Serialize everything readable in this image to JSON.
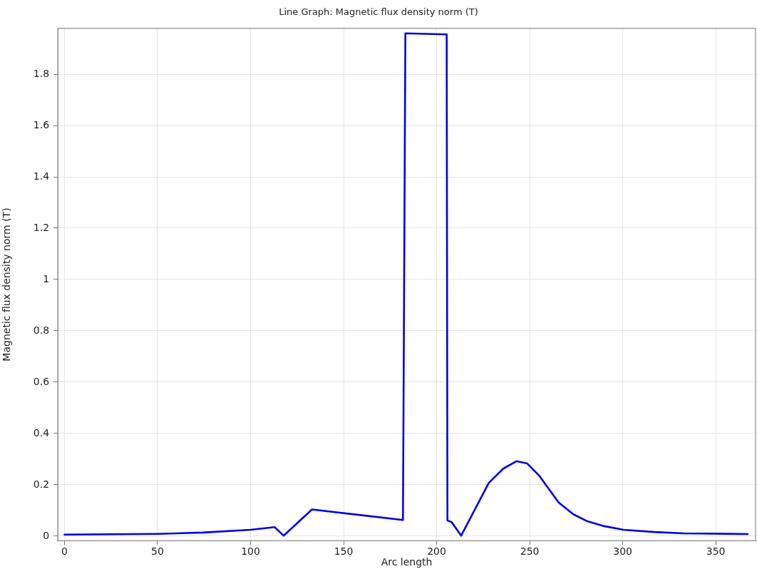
{
  "chart_data": {
    "type": "line",
    "title": "Line Graph: Magnetic flux density norm (T)",
    "xlabel": "Arc length",
    "ylabel": "Magnetic flux density norm (T)",
    "x": [
      0,
      50,
      74.3,
      100,
      113,
      117.8,
      133,
      181.9,
      183.2,
      205.4,
      205.8,
      208,
      213.2,
      228,
      235.8,
      242.9,
      248.7,
      255.2,
      265.5,
      273.3,
      281,
      290,
      300.4,
      317,
      332.7,
      367.2
    ],
    "series": [
      {
        "color": "#0000e6",
        "values": [
          0.006,
          0.009,
          0.014,
          0.025,
          0.035,
          0.002,
          0.104,
          0.063,
          1.959,
          1.955,
          0.061,
          0.055,
          0.002,
          0.207,
          0.263,
          0.292,
          0.283,
          0.235,
          0.132,
          0.086,
          0.058,
          0.039,
          0.025,
          0.016,
          0.011,
          0.008
        ]
      }
    ],
    "xlim": [
      -3.6,
      371.4
    ],
    "ylim": [
      -0.018,
      1.979
    ],
    "xticks": [
      0,
      50,
      100,
      150,
      200,
      250,
      300,
      350
    ],
    "yticks": [
      0,
      0.2,
      0.4,
      0.6,
      0.8,
      1,
      1.2,
      1.4,
      1.6,
      1.8
    ],
    "grid": true,
    "legend": false,
    "marker": "none",
    "line_style": "solid"
  }
}
